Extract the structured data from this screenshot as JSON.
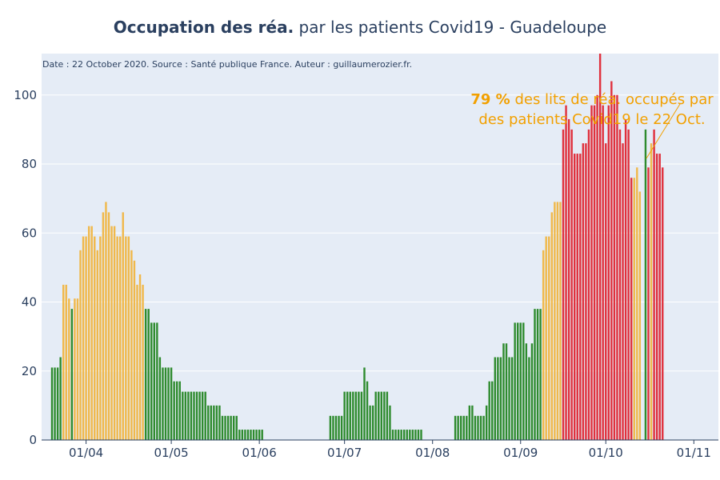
{
  "title": {
    "bold": "Occupation des réa.",
    "rest": " par les patients Covid19 - Guadeloupe"
  },
  "source_note": "Date : 22 October 2020. Source : Santé publique France. Auteur : guillaumerozier.fr.",
  "annotation": {
    "value": "79",
    "pct": " %",
    "line1_rest": " des lits de réa. occupés par",
    "line2": "des patients Covid19 le 22 Oct."
  },
  "colors": {
    "plot_bg": "#e5ecf6",
    "green": "#2e8b2e",
    "orange": "#f0b84a",
    "red": "#e0303c",
    "annotation": "#f2a000",
    "text": "#2a3f5f"
  },
  "chart_data": {
    "type": "bar",
    "x_axis": "date",
    "start_date": "2020-03-20",
    "ylim": [
      0,
      112
    ],
    "yticks": [
      0,
      20,
      40,
      60,
      80,
      100
    ],
    "xticks": [
      "01/04",
      "01/05",
      "01/06",
      "01/07",
      "01/08",
      "01/09",
      "01/10",
      "01/11"
    ],
    "grid": true,
    "values": [
      21,
      21,
      21,
      24,
      45,
      45,
      41,
      38,
      41,
      41,
      55,
      59,
      59,
      62,
      62,
      59,
      55,
      59,
      66,
      69,
      66,
      62,
      62,
      59,
      59,
      66,
      59,
      59,
      55,
      52,
      45,
      48,
      45,
      38,
      38,
      34,
      34,
      34,
      24,
      21,
      21,
      21,
      21,
      17,
      17,
      17,
      14,
      14,
      14,
      14,
      14,
      14,
      14,
      14,
      14,
      10,
      10,
      10,
      10,
      10,
      7,
      7,
      7,
      7,
      7,
      7,
      3,
      3,
      3,
      3,
      3,
      3,
      3,
      3,
      3,
      0,
      0,
      0,
      0,
      0,
      0,
      0,
      0,
      0,
      0,
      0,
      0,
      0,
      0,
      0,
      0,
      0,
      0,
      0,
      0,
      0,
      0,
      0,
      7,
      7,
      7,
      7,
      7,
      14,
      14,
      14,
      14,
      14,
      14,
      14,
      21,
      17,
      10,
      10,
      14,
      14,
      14,
      14,
      14,
      10,
      3,
      3,
      3,
      3,
      3,
      3,
      3,
      3,
      3,
      3,
      3,
      0,
      0,
      0,
      0,
      0,
      0,
      0,
      0,
      0,
      0,
      0,
      7,
      7,
      7,
      7,
      7,
      10,
      10,
      7,
      7,
      7,
      7,
      10,
      17,
      17,
      24,
      24,
      24,
      28,
      28,
      24,
      24,
      34,
      34,
      34,
      34,
      28,
      24,
      28,
      38,
      38,
      38,
      55,
      59,
      59,
      66,
      69,
      69,
      69,
      90,
      97,
      93,
      90,
      83,
      83,
      83,
      86,
      86,
      90,
      97,
      97,
      100,
      116,
      97,
      86,
      97,
      104,
      100,
      100,
      90,
      86,
      93,
      90,
      76,
      76,
      79,
      72,
      0,
      90,
      79,
      86,
      90,
      83,
      83,
      79
    ],
    "color_levels": [
      "G",
      "G",
      "G",
      "G",
      "O",
      "O",
      "O",
      "G",
      "O",
      "O",
      "O",
      "O",
      "O",
      "O",
      "O",
      "O",
      "O",
      "O",
      "O",
      "O",
      "O",
      "O",
      "O",
      "O",
      "O",
      "O",
      "O",
      "O",
      "O",
      "O",
      "O",
      "O",
      "O",
      "G",
      "G",
      "G",
      "G",
      "G",
      "G",
      "G",
      "G",
      "G",
      "G",
      "G",
      "G",
      "G",
      "G",
      "G",
      "G",
      "G",
      "G",
      "G",
      "G",
      "G",
      "G",
      "G",
      "G",
      "G",
      "G",
      "G",
      "G",
      "G",
      "G",
      "G",
      "G",
      "G",
      "G",
      "G",
      "G",
      "G",
      "G",
      "G",
      "G",
      "G",
      "G",
      "G",
      "G",
      "G",
      "G",
      "G",
      "G",
      "G",
      "G",
      "G",
      "G",
      "G",
      "G",
      "G",
      "G",
      "G",
      "G",
      "G",
      "G",
      "G",
      "G",
      "G",
      "G",
      "G",
      "G",
      "G",
      "G",
      "G",
      "G",
      "G",
      "G",
      "G",
      "G",
      "G",
      "G",
      "G",
      "G",
      "G",
      "G",
      "G",
      "G",
      "G",
      "G",
      "G",
      "G",
      "G",
      "G",
      "G",
      "G",
      "G",
      "G",
      "G",
      "G",
      "G",
      "G",
      "G",
      "G",
      "G",
      "G",
      "G",
      "G",
      "G",
      "G",
      "G",
      "G",
      "G",
      "G",
      "G",
      "G",
      "G",
      "G",
      "G",
      "G",
      "G",
      "G",
      "G",
      "G",
      "G",
      "G",
      "G",
      "G",
      "G",
      "G",
      "G",
      "G",
      "G",
      "G",
      "G",
      "G",
      "G",
      "G",
      "G",
      "G",
      "G",
      "G",
      "G",
      "G",
      "G",
      "G",
      "O",
      "O",
      "O",
      "O",
      "O",
      "O",
      "O",
      "R",
      "R",
      "R",
      "R",
      "R",
      "R",
      "R",
      "R",
      "R",
      "R",
      "R",
      "R",
      "R",
      "R",
      "R",
      "R",
      "R",
      "R",
      "R",
      "R",
      "R",
      "R",
      "R",
      "R",
      "R",
      "O",
      "O",
      "O",
      "O",
      "G",
      "R",
      "O",
      "R",
      "R",
      "R",
      "R",
      "O"
    ]
  }
}
